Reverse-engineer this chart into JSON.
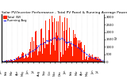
{
  "title": "Solar PV/Inverter Performance - Total PV Panel & Running Average Power Output",
  "ylabel_right": "W",
  "bar_color": "#ff2200",
  "avg_line_color": "#0000ee",
  "background_color": "#ffffff",
  "grid_color": "#bbbbbb",
  "n_bars": 200,
  "ylim": [
    0,
    3200
  ],
  "yticks": [
    0,
    500,
    1000,
    1500,
    2000,
    2500,
    3000
  ],
  "legend_labels": [
    "Total (W)",
    "Running Avg"
  ],
  "title_fontsize": 3.2,
  "axis_fontsize": 2.8,
  "legend_fontsize": 2.8
}
